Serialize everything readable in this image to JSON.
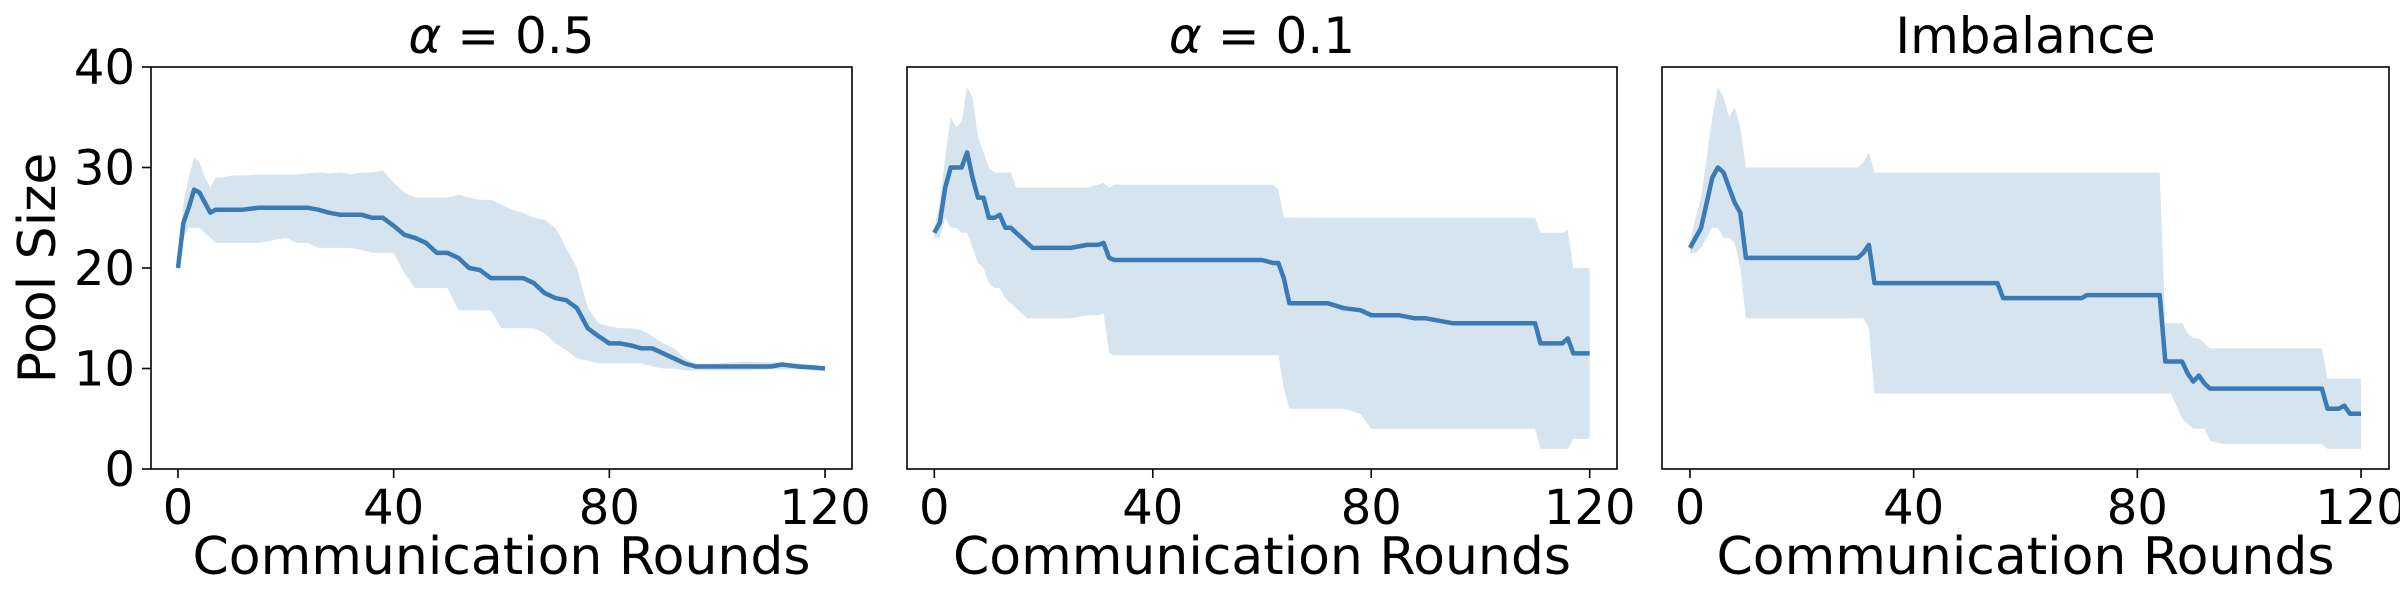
{
  "chart_data": [
    {
      "type": "line",
      "title": "α = 0.5",
      "title_parts": {
        "symbol": "α",
        "value": "0.5"
      },
      "xlabel": "Communication Rounds",
      "ylabel": "Pool Size",
      "xlim": [
        -5,
        125
      ],
      "ylim": [
        0,
        40
      ],
      "xticks": [
        0,
        40,
        80,
        120
      ],
      "yticks": [
        0,
        10,
        20,
        30,
        40
      ],
      "grid": false,
      "series": [
        {
          "line_color": "#3a7ab5",
          "band_color": "#d6e4f0",
          "x": [
            0,
            1,
            2,
            3,
            4,
            5,
            6,
            7,
            8,
            10,
            12,
            15,
            18,
            20,
            22,
            24,
            26,
            28,
            30,
            32,
            34,
            36,
            38,
            40,
            42,
            44,
            46,
            48,
            50,
            52,
            54,
            56,
            58,
            60,
            62,
            64,
            66,
            68,
            70,
            72,
            74,
            76,
            78,
            80,
            82,
            84,
            86,
            88,
            90,
            92,
            94,
            96,
            98,
            100,
            105,
            110,
            112,
            115,
            118,
            120
          ],
          "mean": [
            20,
            24.5,
            26,
            27.8,
            27.5,
            26.5,
            25.5,
            25.8,
            25.8,
            25.8,
            25.8,
            26,
            26,
            26,
            26,
            26,
            25.8,
            25.5,
            25.3,
            25.3,
            25.3,
            25,
            25,
            24.2,
            23.3,
            23,
            22.5,
            21.5,
            21.5,
            21,
            20,
            19.8,
            19,
            19,
            19,
            19,
            18.5,
            17.5,
            17,
            16.8,
            16,
            14,
            13.2,
            12.5,
            12.5,
            12.3,
            12,
            12,
            11.5,
            11,
            10.5,
            10.2,
            10.2,
            10.2,
            10.2,
            10.2,
            10.4,
            10.2,
            10.1,
            10
          ],
          "upper": [
            20.5,
            26.5,
            29,
            31,
            30.5,
            29,
            28,
            29,
            29,
            29.2,
            29.2,
            29.3,
            29.3,
            29.3,
            29.3,
            29.4,
            29.5,
            29.4,
            29.5,
            29.3,
            29.5,
            29.5,
            29.7,
            28.5,
            27.5,
            27,
            27,
            27,
            27,
            27.3,
            27,
            26.8,
            26.8,
            26.3,
            25.8,
            25.5,
            25,
            24.8,
            24,
            22,
            20,
            16,
            14.5,
            14.2,
            14,
            14,
            13.8,
            13.2,
            12.5,
            12,
            11,
            10.5,
            10.5,
            10.5,
            10.7,
            10.6,
            10.6,
            10.5,
            10.3,
            10
          ],
          "lower": [
            19.5,
            23,
            24,
            24,
            24,
            23.5,
            23,
            22.5,
            22.5,
            22.5,
            22.5,
            22.5,
            22.8,
            23,
            22.5,
            22.5,
            22,
            22,
            22,
            22,
            21.8,
            21.5,
            21.5,
            21.5,
            19.5,
            18,
            18,
            18,
            18,
            15.8,
            15.8,
            15.8,
            15.8,
            14,
            14,
            14,
            14,
            13.5,
            12.5,
            11.8,
            11,
            10.8,
            10.5,
            10.5,
            10.5,
            10.5,
            10.5,
            10.2,
            10,
            10,
            9.8,
            9.8,
            9.8,
            9.8,
            9.8,
            9.9,
            9.9,
            9.9,
            9.8,
            9.8
          ]
        }
      ]
    },
    {
      "type": "line",
      "title": "α = 0.1",
      "title_parts": {
        "symbol": "α",
        "value": "0.1"
      },
      "xlabel": "Communication Rounds",
      "ylabel": "",
      "xlim": [
        -5,
        125
      ],
      "ylim": [
        0,
        40
      ],
      "xticks": [
        0,
        40,
        80,
        120
      ],
      "yticks": [],
      "grid": false,
      "series": [
        {
          "line_color": "#3a7ab5",
          "band_color": "#d6e4f0",
          "x": [
            0,
            1,
            2,
            3,
            4,
            5,
            6,
            7,
            8,
            9,
            10,
            11,
            12,
            13,
            14,
            15,
            16,
            17,
            18,
            20,
            25,
            28,
            30,
            31,
            32,
            33,
            40,
            50,
            60,
            62,
            63,
            64,
            65,
            70,
            72,
            75,
            78,
            80,
            85,
            88,
            90,
            95,
            100,
            105,
            110,
            111,
            115,
            116,
            117,
            120
          ],
          "mean": [
            23.5,
            24.5,
            28,
            30,
            30,
            30,
            31.5,
            29,
            27,
            27,
            25,
            25,
            25.3,
            24,
            24,
            23.5,
            23,
            22.5,
            22,
            22,
            22,
            22.3,
            22.3,
            22.5,
            21,
            20.8,
            20.8,
            20.8,
            20.8,
            20.5,
            20.5,
            19,
            16.5,
            16.5,
            16.5,
            16,
            15.8,
            15.3,
            15.3,
            15,
            15,
            14.5,
            14.5,
            14.5,
            14.5,
            12.5,
            12.5,
            13,
            11.5,
            11.5
          ],
          "upper": [
            24,
            26.5,
            31,
            35,
            34,
            34.5,
            38,
            37,
            33,
            31.5,
            30,
            29.5,
            29.5,
            29.5,
            29.5,
            28,
            28,
            28,
            28,
            28,
            28,
            28,
            28.3,
            28.5,
            28,
            28.3,
            28.3,
            28.3,
            28.3,
            28.3,
            27.8,
            25,
            25,
            25,
            25,
            25,
            25,
            25,
            25,
            25,
            25,
            25,
            25,
            25,
            25,
            23.5,
            23.5,
            23.8,
            20,
            20
          ],
          "lower": [
            23,
            23,
            25,
            24,
            24,
            23.5,
            23.5,
            22,
            20.5,
            20,
            18.5,
            18,
            18,
            17,
            16.5,
            16,
            15.5,
            15,
            15,
            15,
            15,
            15.3,
            15.3,
            15.5,
            11.5,
            11.3,
            11.3,
            11.3,
            11.3,
            11.3,
            11.3,
            8,
            6,
            6,
            6,
            6,
            5.5,
            4,
            4,
            4,
            4,
            4,
            4,
            4,
            4,
            2,
            2,
            2,
            3,
            3
          ]
        }
      ]
    },
    {
      "type": "line",
      "title": "Imbalance",
      "xlabel": "Communication Rounds",
      "ylabel": "",
      "xlim": [
        -5,
        125
      ],
      "ylim": [
        0,
        40
      ],
      "xticks": [
        0,
        40,
        80,
        120
      ],
      "yticks": [],
      "grid": false,
      "series": [
        {
          "line_color": "#3a7ab5",
          "band_color": "#d6e4f0",
          "x": [
            0,
            1,
            2,
            3,
            4,
            5,
            6,
            7,
            8,
            9,
            10,
            11,
            12,
            20,
            30,
            31,
            32,
            33,
            40,
            50,
            55,
            56,
            60,
            70,
            71,
            80,
            84,
            85,
            86,
            88,
            89,
            90,
            91,
            92,
            93,
            95,
            100,
            110,
            113,
            114,
            116,
            117,
            118,
            120
          ],
          "mean": [
            22,
            23,
            24,
            26.5,
            29,
            30,
            29.5,
            28,
            26.5,
            25.5,
            21,
            21,
            21,
            21,
            21,
            21.5,
            22.3,
            18.5,
            18.5,
            18.5,
            18.5,
            17,
            17,
            17,
            17.3,
            17.3,
            17.3,
            10.7,
            10.7,
            10.7,
            9.5,
            8.7,
            9.3,
            8.5,
            8,
            8,
            8,
            8,
            8,
            6,
            6,
            6.3,
            5.5,
            5.5
          ],
          "upper": [
            22.5,
            25,
            27,
            31,
            35,
            38,
            37,
            35,
            36,
            34,
            30,
            30,
            30,
            30,
            30,
            30.5,
            31.5,
            29.5,
            29.5,
            29.5,
            29.5,
            29.5,
            29.5,
            29.5,
            29.5,
            29.5,
            29.5,
            14.5,
            14.5,
            14.5,
            13.5,
            13,
            13,
            12.5,
            12,
            12,
            12,
            12,
            12,
            9,
            9,
            9,
            9,
            9
          ],
          "lower": [
            21.5,
            21.5,
            22,
            23,
            24,
            24,
            23,
            23,
            22.5,
            20,
            15,
            15,
            15,
            15,
            15,
            15,
            14,
            7.5,
            7.5,
            7.5,
            7.5,
            7.5,
            7.5,
            7.5,
            7.5,
            7.5,
            7.5,
            7.5,
            7.5,
            5,
            4.5,
            4,
            4,
            4,
            2.8,
            2.5,
            2.5,
            2.5,
            2.5,
            2,
            2,
            2,
            2,
            2
          ]
        }
      ]
    }
  ]
}
